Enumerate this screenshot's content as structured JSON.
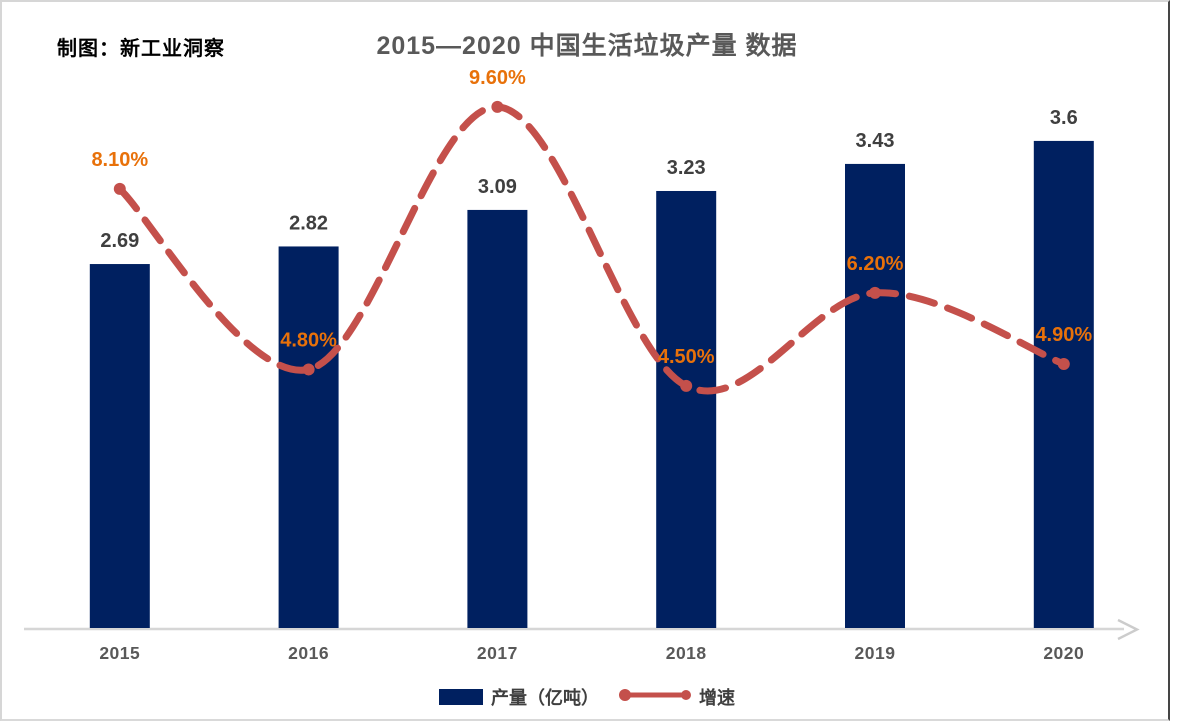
{
  "header": {
    "credit": "制图：新工业洞察",
    "title": "2015—2020 中国生活垃圾产量 数据"
  },
  "chart_data": {
    "type": "bar+line",
    "title": "2015—2020 中国生活垃圾产量 数据",
    "categories": [
      "2015",
      "2016",
      "2017",
      "2018",
      "2019",
      "2020"
    ],
    "series": [
      {
        "name": "产量（亿吨）",
        "type": "bar",
        "axis": "left",
        "values": [
          2.69,
          2.82,
          3.09,
          3.23,
          3.43,
          3.6
        ],
        "labels": [
          "2.69",
          "2.82",
          "3.09",
          "3.23",
          "3.43",
          "3.6"
        ]
      },
      {
        "name": "增速",
        "type": "line",
        "axis": "right",
        "line_style": "dashed",
        "values": [
          8.1,
          4.8,
          9.6,
          4.5,
          6.2,
          4.9
        ],
        "labels": [
          "8.10%",
          "4.80%",
          "9.60%",
          "4.50%",
          "6.20%",
          "4.90%"
        ]
      }
    ],
    "xlabel": "",
    "ylabel": "",
    "y1lim": [
      0,
      4
    ],
    "y2lim": [
      0,
      10
    ],
    "axes_hidden": true,
    "grid": false,
    "legend_position": "bottom"
  },
  "colors": {
    "bar": "#002060",
    "line": "#c4504b",
    "pct_label": "#e8710a",
    "value_label": "#3f3f3f",
    "year_label": "#595959",
    "title": "#595959",
    "axis": "#d6d6d6"
  }
}
